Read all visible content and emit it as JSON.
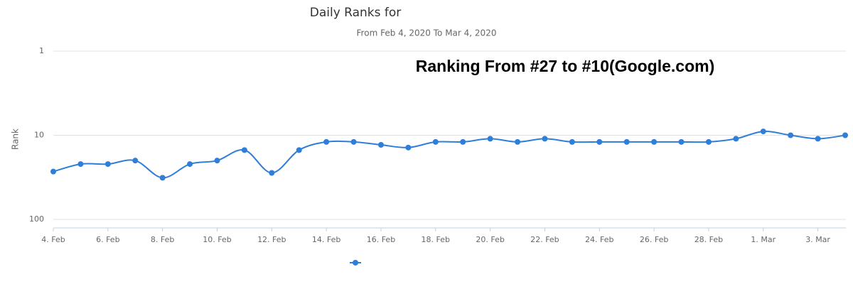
{
  "chart_data": {
    "type": "line",
    "title": "Daily Ranks for",
    "subtitle": "From Feb 4, 2020 To Mar 4, 2020",
    "annotation": "Ranking From #27 to #10(Google.com)",
    "y_label": "Rank",
    "categories": [
      "4. Feb",
      null,
      "6. Feb",
      null,
      "8. Feb",
      null,
      "10. Feb",
      null,
      "12. Feb",
      null,
      "14. Feb",
      null,
      "16. Feb",
      null,
      "18. Feb",
      null,
      "20. Feb",
      null,
      "22. Feb",
      null,
      "24. Feb",
      null,
      "26. Feb",
      null,
      "28. Feb",
      null,
      "1. Mar",
      null,
      "3. Mar",
      null
    ],
    "series": [
      {
        "color": "#2f7ed8",
        "values": [
          27,
          22,
          22,
          20,
          32,
          22,
          20,
          15,
          28,
          15,
          12,
          12,
          13,
          14,
          12,
          12,
          11,
          12,
          11,
          12,
          12,
          12,
          12,
          12,
          12,
          11,
          9,
          10,
          11,
          10
        ]
      }
    ],
    "ylim": [
      1,
      100
    ],
    "yticks": [
      1,
      10,
      100
    ],
    "log_y": true,
    "y_reversed": true,
    "grid": true
  }
}
